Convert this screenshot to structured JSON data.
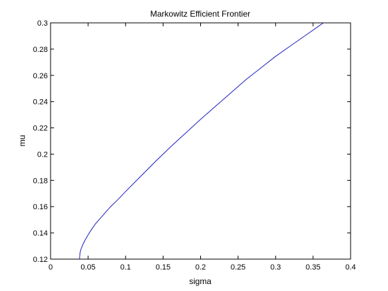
{
  "chart_data": {
    "type": "line",
    "title": "Markowitz Efficient Frontier",
    "xlabel": "sigma",
    "ylabel": "mu",
    "xlim": [
      0,
      0.4
    ],
    "ylim": [
      0.12,
      0.3
    ],
    "grid": false,
    "x_ticks": [
      {
        "value": 0,
        "label": "0"
      },
      {
        "value": 0.05,
        "label": "0.05"
      },
      {
        "value": 0.1,
        "label": "0.1"
      },
      {
        "value": 0.15,
        "label": "0.15"
      },
      {
        "value": 0.2,
        "label": "0.2"
      },
      {
        "value": 0.25,
        "label": "0.25"
      },
      {
        "value": 0.3,
        "label": "0.3"
      },
      {
        "value": 0.35,
        "label": "0.35"
      },
      {
        "value": 0.4,
        "label": "0.4"
      }
    ],
    "y_ticks": [
      {
        "value": 0.12,
        "label": "0.12"
      },
      {
        "value": 0.14,
        "label": "0.14"
      },
      {
        "value": 0.16,
        "label": "0.16"
      },
      {
        "value": 0.18,
        "label": "0.18"
      },
      {
        "value": 0.2,
        "label": "0.2"
      },
      {
        "value": 0.22,
        "label": "0.22"
      },
      {
        "value": 0.24,
        "label": "0.24"
      },
      {
        "value": 0.26,
        "label": "0.26"
      },
      {
        "value": 0.28,
        "label": "0.28"
      },
      {
        "value": 0.3,
        "label": "0.3"
      }
    ],
    "series": [
      {
        "color": "#1f1fbf",
        "x": [
          0.0385,
          0.0392,
          0.0405,
          0.0425,
          0.0455,
          0.05,
          0.055,
          0.06,
          0.07,
          0.08,
          0.09,
          0.1,
          0.12,
          0.14,
          0.16,
          0.18,
          0.2,
          0.22,
          0.24,
          0.26,
          0.28,
          0.3,
          0.32,
          0.34,
          0.36,
          0.38
        ],
        "y": [
          0.12,
          0.1245,
          0.1275,
          0.1305,
          0.134,
          0.1385,
          0.143,
          0.147,
          0.1535,
          0.16,
          0.1655,
          0.1715,
          0.183,
          0.1945,
          0.2055,
          0.216,
          0.2265,
          0.2365,
          0.2465,
          0.2565,
          0.2655,
          0.2745,
          0.2825,
          0.2905,
          0.2985,
          0.3065
        ]
      }
    ]
  }
}
